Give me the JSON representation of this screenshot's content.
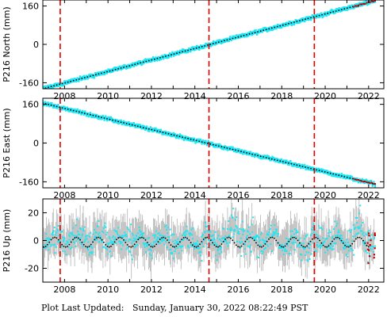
{
  "chart_data": [
    {
      "type": "scatter",
      "ylabel": "P216 North (mm)",
      "yticks": [
        -160,
        0,
        160
      ],
      "ylim": [
        -185,
        185
      ],
      "x_ticks": [
        2008,
        2010,
        2012,
        2014,
        2016,
        2018,
        2020,
        2022
      ],
      "xlim": [
        2007.0,
        2022.7
      ],
      "events": [
        2007.8,
        2014.65,
        2019.5
      ],
      "series": [
        {
          "color": "#1ee6f4",
          "x": [
            2007.0,
            2022.3
          ],
          "y": [
            -185,
            182
          ]
        },
        {
          "color": "#000000",
          "x": [
            2007.0,
            2022.3
          ],
          "y": [
            -185,
            182
          ]
        },
        {
          "color": "#cc0000",
          "x": [
            2021.3,
            2022.3
          ],
          "y": [
            158,
            182
          ]
        }
      ]
    },
    {
      "type": "scatter",
      "ylabel": "P216 East (mm)",
      "yticks": [
        -160,
        0,
        160
      ],
      "ylim": [
        -185,
        185
      ],
      "x_ticks": [
        2008,
        2010,
        2012,
        2014,
        2016,
        2018,
        2020,
        2022
      ],
      "xlim": [
        2007.0,
        2022.7
      ],
      "events": [
        2007.8,
        2014.65,
        2019.5
      ],
      "series": [
        {
          "color": "#1ee6f4",
          "x": [
            2007.0,
            2022.3
          ],
          "y": [
            165,
            -170
          ]
        },
        {
          "color": "#000000",
          "x": [
            2007.0,
            2022.3
          ],
          "y": [
            165,
            -170
          ]
        },
        {
          "color": "#cc0000",
          "x": [
            2021.3,
            2022.3
          ],
          "y": [
            -148,
            -170
          ]
        }
      ]
    },
    {
      "type": "scatter",
      "ylabel": "P216 Up (mm)",
      "yticks": [
        -20,
        0,
        20
      ],
      "ylim": [
        -30,
        30
      ],
      "x_ticks": [
        2008,
        2010,
        2012,
        2014,
        2016,
        2018,
        2020,
        2022
      ],
      "xlim": [
        2007.0,
        2022.7
      ],
      "events": [
        2007.8,
        2014.65,
        2019.5
      ],
      "residual_colors": {
        "errorbar": "#b4b4b4",
        "daily": "#1ee6f4",
        "smoothed": "#000000",
        "rapid": "#cc0000"
      }
    }
  ],
  "footer": {
    "label": "Plot Last Updated:",
    "timestamp": "Sunday, January 30, 2022 08:22:49 PST"
  }
}
